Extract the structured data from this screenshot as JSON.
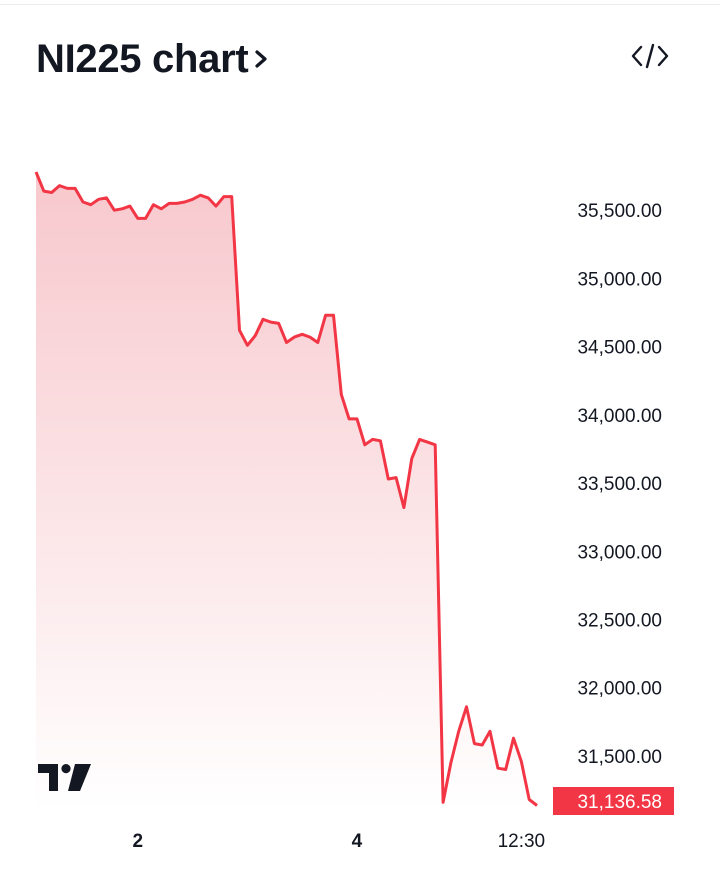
{
  "header": {
    "title": "NI225 chart",
    "chevron_icon": "chevron-right-icon",
    "embed_icon": "code-icon"
  },
  "logo": {
    "text": "TradingView",
    "icon": "tradingview-logo"
  },
  "colors": {
    "line": "#f23645",
    "fill_top": "#f7c5ca",
    "fill_bottom": "#ffffff",
    "last_price_bg": "#f23645",
    "text": "#131722"
  },
  "chart_data": {
    "type": "area",
    "y_ticks": [
      {
        "value": 35500,
        "label": "35,500.00"
      },
      {
        "value": 35000,
        "label": "35,000.00"
      },
      {
        "value": 34500,
        "label": "34,500.00"
      },
      {
        "value": 34000,
        "label": "34,000.00"
      },
      {
        "value": 33500,
        "label": "33,500.00"
      },
      {
        "value": 33000,
        "label": "33,000.00"
      },
      {
        "value": 32500,
        "label": "32,500.00"
      },
      {
        "value": 32000,
        "label": "32,000.00"
      },
      {
        "value": 31500,
        "label": "31,500.00"
      }
    ],
    "x_ticks": [
      {
        "value": 13,
        "label": "2",
        "bold": true
      },
      {
        "value": 41,
        "label": "4",
        "bold": true
      },
      {
        "value": 62,
        "label": "12:30",
        "bold": false
      }
    ],
    "last_value": {
      "value": 31136.58,
      "label": "31,136.58"
    },
    "ylim": [
      31100,
      35830
    ],
    "xlim": [
      0,
      69
    ],
    "grid": false,
    "values": [
      35780,
      35640,
      35630,
      35680,
      35660,
      35660,
      35560,
      35540,
      35580,
      35590,
      35500,
      35510,
      35530,
      35440,
      35440,
      35540,
      35510,
      35550,
      35550,
      35560,
      35580,
      35610,
      35590,
      35530,
      35600,
      35600,
      34620,
      34510,
      34580,
      34700,
      34680,
      34670,
      34530,
      34570,
      34590,
      34570,
      34530,
      34730,
      34730,
      34150,
      33970,
      33970,
      33780,
      33820,
      33810,
      33530,
      33540,
      33320,
      33680,
      33820,
      33800,
      33780,
      31160,
      31450,
      31680,
      31860,
      31590,
      31580,
      31680,
      31410,
      31400,
      31630,
      31460,
      31180,
      31136.58
    ]
  }
}
